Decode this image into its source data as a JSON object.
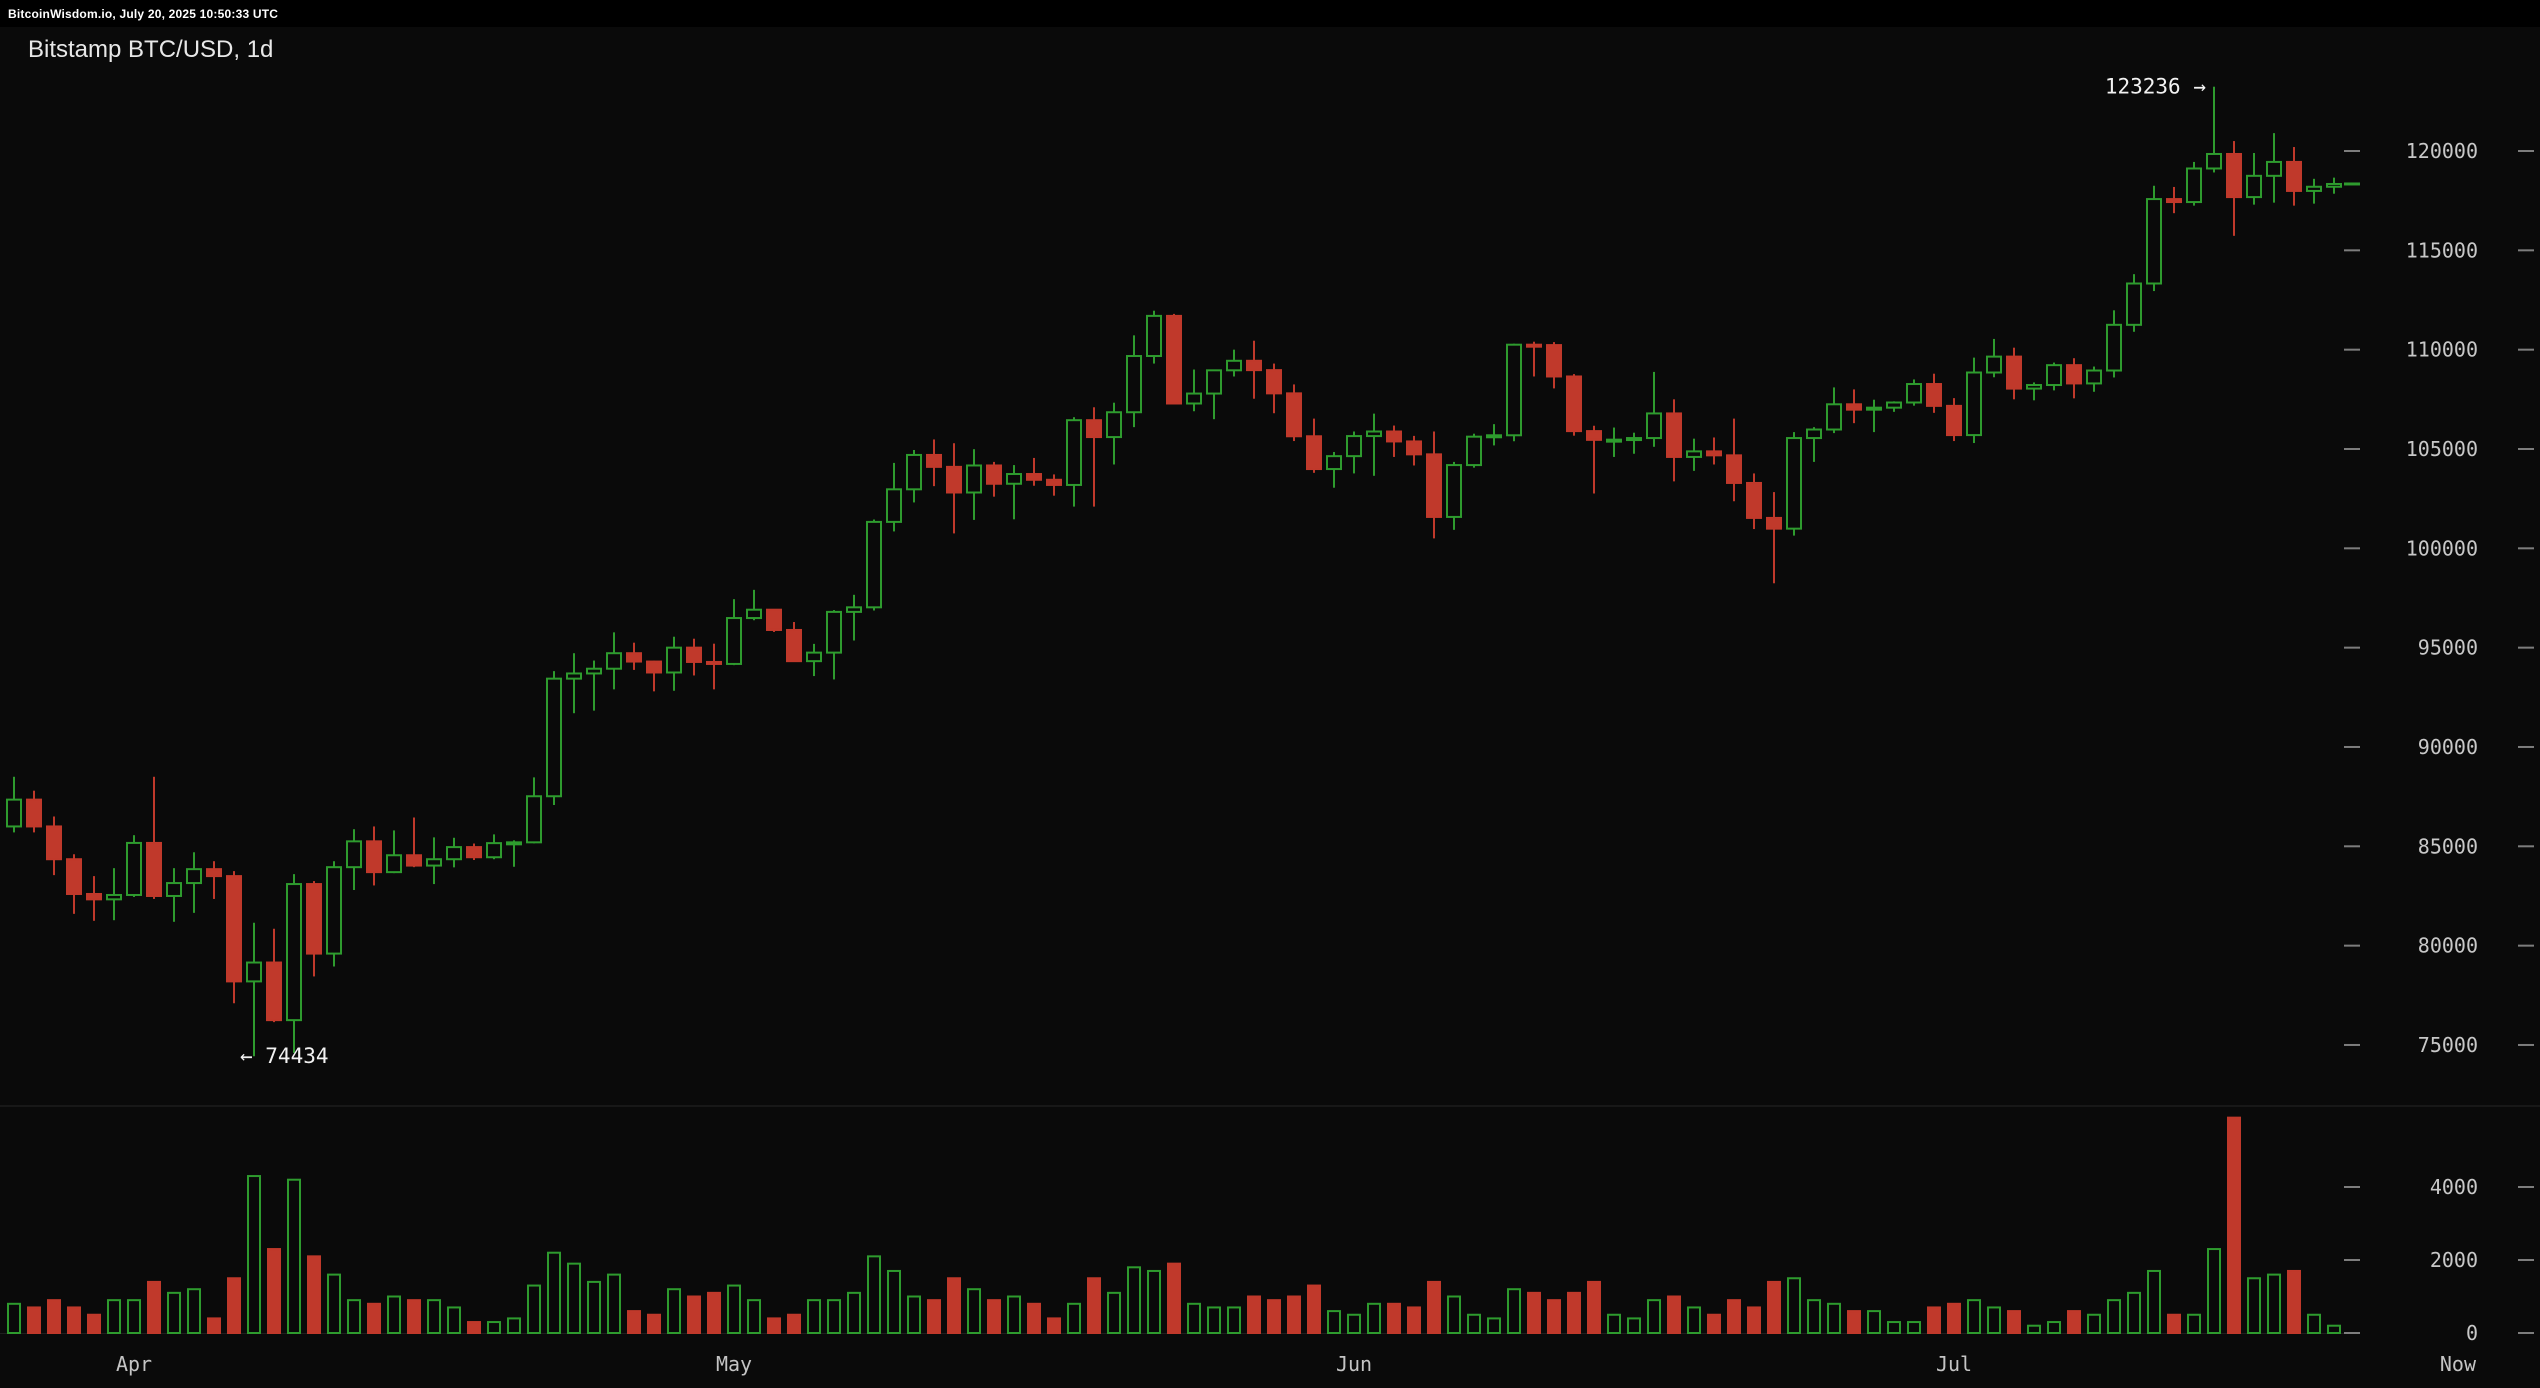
{
  "topbar": {
    "text": "BitcoinWisdom.io, July 20, 2025 10:50:33 UTC"
  },
  "chart": {
    "title": "Bitstamp BTC/USD, 1d"
  },
  "colors": {
    "background": "#0a0a0a",
    "topbar_bg": "#000000",
    "up": "#2e9b2e",
    "down": "#c0392b",
    "axis_text": "#c8c8c8",
    "tick_dash": "#7d7d7d",
    "divider": "#262626",
    "annotation_text": "#f2f2f2"
  },
  "chart_data": {
    "type": "candlestick_with_volume",
    "title": "Bitstamp BTC/USD, 1d",
    "interval": "1d",
    "start_date": "2025-03-26",
    "columns": [
      "open",
      "high",
      "low",
      "close",
      "volume"
    ],
    "price_axis": {
      "side": "right",
      "ticks": [
        75000,
        80000,
        85000,
        90000,
        95000,
        100000,
        105000,
        110000,
        115000,
        120000
      ],
      "approx_visible_range": [
        72000,
        126000
      ]
    },
    "volume_axis": {
      "side": "right",
      "ticks": [
        0,
        2000,
        4000
      ]
    },
    "x_axis": {
      "month_ticks": [
        {
          "label": "Apr",
          "candle_index": 6
        },
        {
          "label": "May",
          "candle_index": 36
        },
        {
          "label": "Jun",
          "candle_index": 67
        },
        {
          "label": "Jul",
          "candle_index": 97
        }
      ],
      "right_label": "Now"
    },
    "annotations": {
      "session_high": {
        "text": "123236 →",
        "value": 123236,
        "candle_index": 110
      },
      "session_low": {
        "text": "← 74434",
        "value": 74434,
        "candle_index": 12
      }
    },
    "last_price": 118340,
    "candles": [
      [
        86000,
        88500,
        85700,
        87350,
        800
      ],
      [
        87350,
        87800,
        85700,
        86000,
        700
      ],
      [
        86000,
        86500,
        83550,
        84350,
        900
      ],
      [
        84350,
        84600,
        81600,
        82600,
        700
      ],
      [
        82600,
        83500,
        81250,
        82330,
        500
      ],
      [
        82330,
        83900,
        81280,
        82550,
        900
      ],
      [
        82550,
        85560,
        82450,
        85170,
        900
      ],
      [
        85170,
        88500,
        82350,
        82500,
        1400
      ],
      [
        82500,
        83900,
        81200,
        83150,
        1100
      ],
      [
        83150,
        84700,
        81650,
        83850,
        1200
      ],
      [
        83850,
        84250,
        82350,
        83500,
        400
      ],
      [
        83500,
        83750,
        77100,
        78200,
        1500
      ],
      [
        78200,
        81150,
        74434,
        79150,
        4300
      ],
      [
        79150,
        80850,
        76150,
        76250,
        2300
      ],
      [
        76250,
        83600,
        74600,
        83100,
        4200
      ],
      [
        83100,
        83250,
        78450,
        79600,
        2100
      ],
      [
        79600,
        84250,
        78950,
        83950,
        1600
      ],
      [
        83950,
        85860,
        82800,
        85250,
        900
      ],
      [
        85250,
        86000,
        83030,
        83700,
        800
      ],
      [
        83700,
        85800,
        83650,
        84550,
        1000
      ],
      [
        84550,
        86450,
        83950,
        84030,
        900
      ],
      [
        84030,
        85450,
        83100,
        84350,
        900
      ],
      [
        84350,
        85430,
        83940,
        84960,
        700
      ],
      [
        84960,
        85140,
        84310,
        84450,
        300
      ],
      [
        84450,
        85600,
        84350,
        85160,
        300
      ],
      [
        85160,
        85300,
        83970,
        85200,
        400
      ],
      [
        85200,
        88470,
        85150,
        87520,
        1300
      ],
      [
        87520,
        93820,
        87080,
        93440,
        2200
      ],
      [
        93440,
        94720,
        91700,
        93700,
        1900
      ],
      [
        93700,
        94350,
        91830,
        93940,
        1400
      ],
      [
        93940,
        95770,
        92900,
        94720,
        1600
      ],
      [
        94720,
        95250,
        93880,
        94300,
        600
      ],
      [
        94300,
        94340,
        92800,
        93750,
        500
      ],
      [
        93750,
        95550,
        92830,
        95000,
        1200
      ],
      [
        95000,
        95450,
        93600,
        94280,
        1000
      ],
      [
        94280,
        95200,
        92900,
        94180,
        1100
      ],
      [
        94180,
        97440,
        94120,
        96490,
        1300
      ],
      [
        96490,
        97910,
        96380,
        96910,
        900
      ],
      [
        96910,
        96940,
        95790,
        95890,
        400
      ],
      [
        95890,
        96290,
        94870,
        94320,
        500
      ],
      [
        94320,
        95190,
        93570,
        94750,
        900
      ],
      [
        94750,
        96890,
        93400,
        96800,
        900
      ],
      [
        96800,
        97660,
        95360,
        97030,
        1100
      ],
      [
        97030,
        101450,
        96870,
        101330,
        2100
      ],
      [
        101330,
        104300,
        100850,
        102970,
        1700
      ],
      [
        102970,
        104950,
        102310,
        104700,
        1000
      ],
      [
        104700,
        105480,
        103130,
        104100,
        900
      ],
      [
        104100,
        105290,
        100750,
        102810,
        1500
      ],
      [
        102810,
        104990,
        101430,
        104170,
        1200
      ],
      [
        104170,
        104350,
        102600,
        103250,
        900
      ],
      [
        103250,
        104190,
        101460,
        103740,
        1000
      ],
      [
        103740,
        104550,
        103150,
        103450,
        800
      ],
      [
        103450,
        103720,
        102650,
        103190,
        400
      ],
      [
        103190,
        106600,
        102100,
        106450,
        800
      ],
      [
        106450,
        107100,
        102100,
        105600,
        1500
      ],
      [
        105600,
        107330,
        104220,
        106850,
        1100
      ],
      [
        106850,
        110720,
        106100,
        109680,
        1800
      ],
      [
        109680,
        111960,
        109300,
        111700,
        1700
      ],
      [
        111700,
        111800,
        107300,
        107290,
        1900
      ],
      [
        107290,
        109000,
        106900,
        107790,
        800
      ],
      [
        107790,
        109000,
        106500,
        108960,
        700
      ],
      [
        108960,
        110000,
        108650,
        109440,
        700
      ],
      [
        109440,
        110450,
        107530,
        108970,
        1000
      ],
      [
        108970,
        109300,
        106800,
        107800,
        900
      ],
      [
        107800,
        108250,
        105400,
        105640,
        1000
      ],
      [
        105640,
        106530,
        103800,
        103990,
        1300
      ],
      [
        103990,
        104850,
        103050,
        104640,
        600
      ],
      [
        104640,
        105880,
        103770,
        105650,
        500
      ],
      [
        105650,
        106780,
        103650,
        105880,
        800
      ],
      [
        105880,
        106180,
        104600,
        105380,
        800
      ],
      [
        105380,
        105660,
        104170,
        104730,
        700
      ],
      [
        104730,
        105880,
        100500,
        101580,
        1400
      ],
      [
        101580,
        104350,
        100930,
        104190,
        1000
      ],
      [
        104190,
        105770,
        104060,
        105620,
        500
      ],
      [
        105620,
        106250,
        105180,
        105690,
        400
      ],
      [
        105690,
        110300,
        105390,
        110250,
        1200
      ],
      [
        110250,
        110400,
        108650,
        110230,
        1100
      ],
      [
        110230,
        110380,
        108050,
        108650,
        900
      ],
      [
        108650,
        108770,
        105670,
        105900,
        1100
      ],
      [
        105900,
        106170,
        102760,
        105460,
        1400
      ],
      [
        105460,
        106080,
        104600,
        105470,
        500
      ],
      [
        105470,
        105820,
        104760,
        105550,
        400
      ],
      [
        105550,
        108880,
        105110,
        106790,
        900
      ],
      [
        106790,
        107500,
        103370,
        104600,
        1000
      ],
      [
        104600,
        105520,
        103900,
        104880,
        700
      ],
      [
        104880,
        105580,
        104220,
        104680,
        500
      ],
      [
        104680,
        106530,
        102370,
        103290,
        900
      ],
      [
        103290,
        103770,
        100970,
        101530,
        700
      ],
      [
        101530,
        102830,
        98240,
        100990,
        1400
      ],
      [
        100990,
        105850,
        100640,
        105550,
        1500
      ],
      [
        105550,
        106100,
        104350,
        105980,
        900
      ],
      [
        105980,
        108100,
        105800,
        107250,
        800
      ],
      [
        107250,
        108000,
        106300,
        106980,
        600
      ],
      [
        106980,
        107480,
        105850,
        107080,
        600
      ],
      [
        107080,
        107400,
        106870,
        107340,
        300
      ],
      [
        107340,
        108500,
        107180,
        108270,
        300
      ],
      [
        108270,
        108790,
        106820,
        107170,
        700
      ],
      [
        107170,
        107560,
        105400,
        105700,
        800
      ],
      [
        105700,
        109600,
        105300,
        108850,
        900
      ],
      [
        108850,
        110540,
        108610,
        109650,
        700
      ],
      [
        109650,
        110100,
        107500,
        108040,
        600
      ],
      [
        108040,
        108350,
        107450,
        108220,
        200
      ],
      [
        108220,
        109350,
        107950,
        109220,
        300
      ],
      [
        109220,
        109570,
        107550,
        108300,
        600
      ],
      [
        108300,
        109150,
        107880,
        108950,
        500
      ],
      [
        108950,
        111980,
        108600,
        111250,
        900
      ],
      [
        111250,
        113800,
        110900,
        113330,
        1100
      ],
      [
        113330,
        118250,
        112950,
        117580,
        1700
      ],
      [
        117580,
        118190,
        116870,
        117430,
        500
      ],
      [
        117430,
        119450,
        117250,
        119120,
        500
      ],
      [
        119120,
        123236,
        118920,
        119850,
        2300
      ],
      [
        119850,
        120500,
        115730,
        117680,
        5900
      ],
      [
        117680,
        119900,
        117300,
        118750,
        1500
      ],
      [
        118750,
        120900,
        117400,
        119450,
        1600
      ],
      [
        119450,
        120200,
        117250,
        117990,
        1700
      ],
      [
        117990,
        118600,
        117350,
        118200,
        500
      ],
      [
        118200,
        118660,
        117850,
        118340,
        200
      ]
    ]
  }
}
